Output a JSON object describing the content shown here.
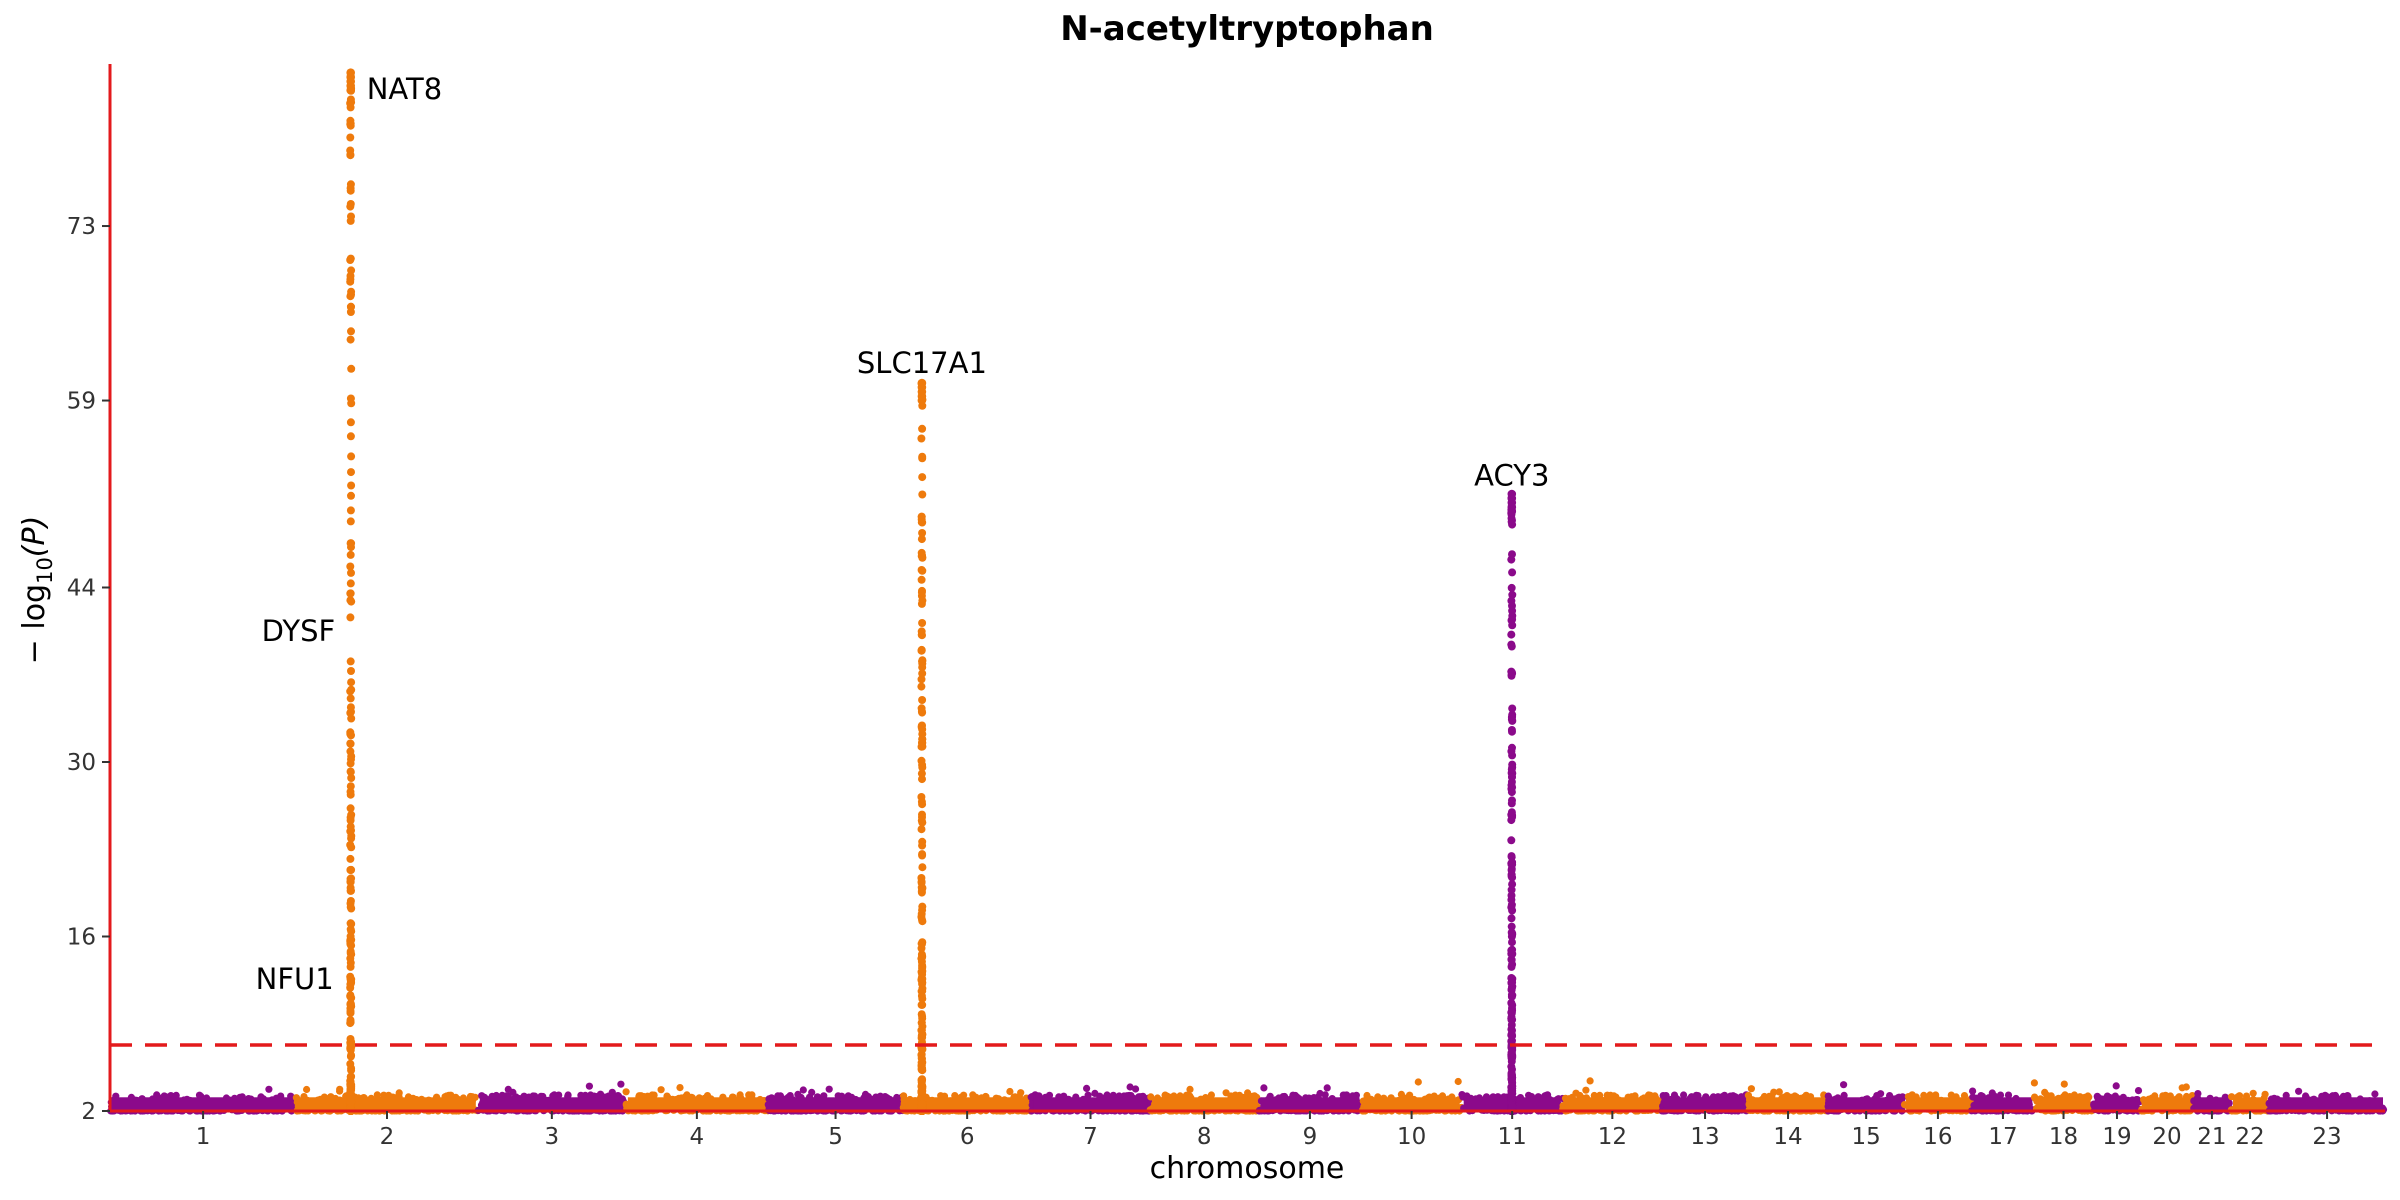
{
  "chart_data": {
    "type": "scatter",
    "subtype": "manhattan",
    "title": "N-acetyltryptophan",
    "xlabel": "chromosome",
    "ylabel_parts": {
      "prefix": "− log",
      "subscript": "10",
      "suffix": "(P)"
    },
    "ylim": [
      2,
      86
    ],
    "yticks": [
      2,
      16,
      30,
      44,
      59,
      73
    ],
    "significance_threshold": 7.3,
    "grid": false,
    "colors": {
      "odd": "#8b0a8b",
      "even": "#ee7a0c",
      "axis": "#e31a1c",
      "threshold": "#e31a1c"
    },
    "chromosomes": [
      {
        "label": "1",
        "start": 0,
        "end": 249
      },
      {
        "label": "2",
        "start": 249,
        "end": 492
      },
      {
        "label": "3",
        "start": 492,
        "end": 690
      },
      {
        "label": "4",
        "start": 690,
        "end": 880
      },
      {
        "label": "5",
        "start": 880,
        "end": 1061
      },
      {
        "label": "6",
        "start": 1061,
        "end": 1232
      },
      {
        "label": "7",
        "start": 1232,
        "end": 1391
      },
      {
        "label": "8",
        "start": 1391,
        "end": 1536
      },
      {
        "label": "9",
        "start": 1536,
        "end": 1674
      },
      {
        "label": "10",
        "start": 1674,
        "end": 1808
      },
      {
        "label": "11",
        "start": 1808,
        "end": 1943
      },
      {
        "label": "12",
        "start": 1943,
        "end": 2076
      },
      {
        "label": "13",
        "start": 2076,
        "end": 2191
      },
      {
        "label": "14",
        "start": 2191,
        "end": 2298
      },
      {
        "label": "15",
        "start": 2298,
        "end": 2400
      },
      {
        "label": "16",
        "start": 2400,
        "end": 2490
      },
      {
        "label": "17",
        "start": 2490,
        "end": 2574
      },
      {
        "label": "18",
        "start": 2574,
        "end": 2652
      },
      {
        "label": "19",
        "start": 2652,
        "end": 2717
      },
      {
        "label": "20",
        "start": 2717,
        "end": 2786
      },
      {
        "label": "21",
        "start": 2786,
        "end": 2837
      },
      {
        "label": "22",
        "start": 2837,
        "end": 2888
      },
      {
        "label": "23",
        "start": 2888,
        "end": 3043
      }
    ],
    "peaks": [
      {
        "gene": "NAT8",
        "chromosome": "2",
        "position": 73,
        "max": 85.3
      },
      {
        "gene": "SLC17A1",
        "chromosome": "6",
        "position": 25,
        "max": 60.4
      },
      {
        "gene": "ACY3",
        "chromosome": "11",
        "position": 67,
        "max": 51.5
      }
    ],
    "annotations": [
      {
        "text": "NAT8",
        "chromosome": "2",
        "position": 73,
        "y": 84.0,
        "side": "right"
      },
      {
        "text": "DYSF",
        "chromosome": "2",
        "position": 71,
        "y": 40.5,
        "side": "left"
      },
      {
        "text": "NFU1",
        "chromosome": "2",
        "position": 69,
        "y": 12.6,
        "side": "left"
      },
      {
        "text": "SLC17A1",
        "chromosome": "6",
        "position": 25,
        "y": 62.0,
        "side": "center"
      },
      {
        "text": "ACY3",
        "chromosome": "11",
        "position": 67,
        "y": 53.0,
        "side": "center"
      }
    ]
  }
}
